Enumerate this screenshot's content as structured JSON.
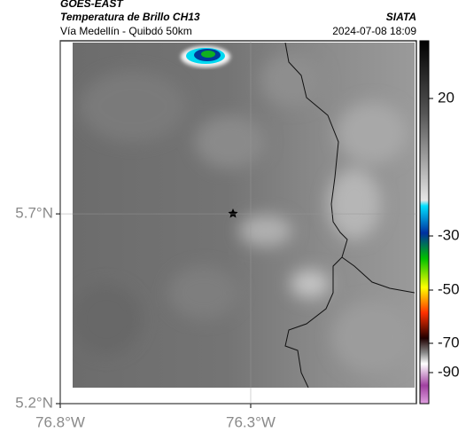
{
  "header": {
    "source": "GOES-EAST",
    "title": "Temperatura de Brillo CH13",
    "agency": "SIATA",
    "subtitle": "Vía Medellín - Quibdó 50km",
    "timestamp": "2024-07-08 18:09"
  },
  "map": {
    "xlim": [
      -76.8,
      -75.865
    ],
    "ylim": [
      5.2,
      6.156
    ],
    "xticks": [
      {
        "value": -76.8,
        "label": "76.8°W"
      },
      {
        "value": -76.3,
        "label": "76.3°W"
      }
    ],
    "yticks": [
      {
        "value": 5.7,
        "label": "5.7°N"
      },
      {
        "value": 5.2,
        "label": "5.2°N"
      }
    ]
  },
  "colorbar": {
    "ticks": [
      20,
      -30,
      -50,
      -70,
      -90
    ]
  }
}
